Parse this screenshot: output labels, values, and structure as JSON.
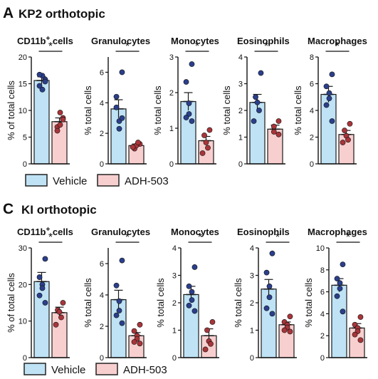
{
  "colors": {
    "vehicle_fill": "#bfe3f5",
    "vehicle_dot": "#2b3f8c",
    "adh_fill": "#f8cfcf",
    "adh_dot": "#a8353a"
  },
  "panels": [
    {
      "letter": "A",
      "title": "KP2 orthotopic",
      "legend": [
        "Vehicle",
        "ADH-503"
      ],
      "charts": [
        {
          "title_main": "CD11b",
          "title_sup": "+",
          "title_rest": " cells",
          "ylabel": "% of total cells",
          "ylim": [
            0,
            20
          ],
          "yticks": [
            0,
            5,
            10,
            15,
            20
          ],
          "significance": "*",
          "series": [
            {
              "name": "Vehicle",
              "mean": 15.6,
              "sem": 0.7,
              "points": [
                15.8,
                14.6,
                16.5,
                13.9,
                16.7,
                15.4
              ]
            },
            {
              "name": "ADH-503",
              "mean": 7.9,
              "sem": 0.7,
              "points": [
                8.6,
                6.9,
                9.6,
                7.3,
                6.2,
                8.3
              ]
            }
          ]
        },
        {
          "title_main": "Granulocytes",
          "title_sup": "",
          "title_rest": "",
          "ylabel": "% total cells",
          "ylim": [
            0,
            7
          ],
          "yticks": [
            0,
            2,
            4,
            6
          ],
          "significance": "*",
          "series": [
            {
              "name": "Vehicle",
              "mean": 3.6,
              "sem": 0.6,
              "points": [
                6.0,
                4.4,
                2.8,
                2.3,
                3.7,
                3.0
              ]
            },
            {
              "name": "ADH-503",
              "mean": 1.2,
              "sem": 0.1,
              "points": [
                1.3,
                1.0,
                1.2,
                1.4,
                1.1
              ]
            }
          ]
        },
        {
          "title_main": "Monocytes",
          "title_sup": "",
          "title_rest": "",
          "ylabel": "% total cells",
          "ylim": [
            0,
            3
          ],
          "yticks": [
            0,
            1,
            2,
            3
          ],
          "significance": "*",
          "series": [
            {
              "name": "Vehicle",
              "mean": 1.75,
              "sem": 0.25,
              "points": [
                2.8,
                2.3,
                1.7,
                1.4,
                1.3,
                1.2
              ]
            },
            {
              "name": "ADH-503",
              "mean": 0.65,
              "sem": 0.12,
              "points": [
                0.95,
                0.8,
                0.6,
                0.45,
                0.3
              ]
            }
          ]
        },
        {
          "title_main": "Eosinophils",
          "title_sup": "",
          "title_rest": "",
          "ylabel": "% total cells",
          "ylim": [
            0,
            4
          ],
          "yticks": [
            0,
            1,
            2,
            3,
            4
          ],
          "significance": "*",
          "series": [
            {
              "name": "Vehicle",
              "mean": 2.3,
              "sem": 0.3,
              "points": [
                3.4,
                2.5,
                2.3,
                2.0,
                1.6
              ]
            },
            {
              "name": "ADH-503",
              "mean": 1.3,
              "sem": 0.15,
              "points": [
                1.6,
                1.4,
                1.2,
                1.1
              ]
            }
          ]
        },
        {
          "title_main": "Macrophages",
          "title_sup": "",
          "title_rest": "",
          "ylabel": "% total cells",
          "ylim": [
            0,
            8
          ],
          "yticks": [
            0,
            2,
            4,
            6,
            8
          ],
          "significance": "*",
          "series": [
            {
              "name": "Vehicle",
              "mean": 5.2,
              "sem": 0.6,
              "points": [
                6.7,
                5.8,
                5.3,
                4.9,
                4.4,
                3.2
              ]
            },
            {
              "name": "ADH-503",
              "mean": 2.2,
              "sem": 0.3,
              "points": [
                3.0,
                2.5,
                2.1,
                1.8,
                1.6
              ]
            }
          ]
        }
      ]
    },
    {
      "letter": "C",
      "title": "KI orthotopic",
      "legend": [
        "Vehicle",
        "ADH-503"
      ],
      "charts": [
        {
          "title_main": "CD11b",
          "title_sup": "+",
          "title_rest": " cells",
          "ylabel": "% of total cells",
          "ylim": [
            0,
            30
          ],
          "yticks": [
            0,
            10,
            20,
            30
          ],
          "significance": "*",
          "series": [
            {
              "name": "Vehicle",
              "mean": 20.8,
              "sem": 2.5,
              "points": [
                27,
                22,
                20,
                19,
                17,
                15
              ]
            },
            {
              "name": "ADH-503",
              "mean": 12.3,
              "sem": 1.5,
              "points": [
                15,
                13,
                12.5,
                11,
                9
              ]
            }
          ]
        },
        {
          "title_main": "Granulocytes",
          "title_sup": "",
          "title_rest": "",
          "ylabel": "% total cells",
          "ylim": [
            0,
            7
          ],
          "yticks": [
            0,
            2,
            4,
            6
          ],
          "significance": "*",
          "series": [
            {
              "name": "Vehicle",
              "mean": 3.7,
              "sem": 0.6,
              "points": [
                6.2,
                4.6,
                3.6,
                3.0,
                2.7,
                2.2
              ]
            },
            {
              "name": "ADH-503",
              "mean": 1.4,
              "sem": 0.2,
              "points": [
                2.1,
                1.7,
                1.4,
                1.2,
                1.0,
                0.9
              ]
            }
          ]
        },
        {
          "title_main": "Monocytes",
          "title_sup": "",
          "title_rest": "",
          "ylabel": "% total cells",
          "ylim": [
            0,
            4
          ],
          "yticks": [
            0,
            1,
            2,
            3,
            4
          ],
          "significance": "*",
          "series": [
            {
              "name": "Vehicle",
              "mean": 2.3,
              "sem": 0.3,
              "points": [
                3.3,
                2.6,
                2.4,
                2.1,
                1.9,
                1.7
              ]
            },
            {
              "name": "ADH-503",
              "mean": 0.8,
              "sem": 0.25,
              "points": [
                1.3,
                1.0,
                0.6,
                0.5,
                0.3
              ]
            }
          ]
        },
        {
          "title_main": "Eosinophils",
          "title_sup": "",
          "title_rest": "",
          "ylabel": "% total cells",
          "ylim": [
            0,
            4
          ],
          "yticks": [
            0,
            1,
            2,
            3,
            4
          ],
          "significance": "*",
          "series": [
            {
              "name": "Vehicle",
              "mean": 2.5,
              "sem": 0.35,
              "points": [
                3.8,
                3.1,
                2.6,
                2.2,
                1.8,
                1.6
              ]
            },
            {
              "name": "ADH-503",
              "mean": 1.2,
              "sem": 0.1,
              "points": [
                1.5,
                1.3,
                1.2,
                1.1,
                1.0,
                0.95
              ]
            }
          ]
        },
        {
          "title_main": "Macrophages",
          "title_sup": "",
          "title_rest": "",
          "ylabel": "% total cells",
          "ylim": [
            0,
            10
          ],
          "yticks": [
            0,
            2,
            4,
            6,
            8,
            10
          ],
          "significance": "*",
          "series": [
            {
              "name": "Vehicle",
              "mean": 6.6,
              "sem": 0.6,
              "points": [
                8.5,
                7.2,
                6.8,
                6.3,
                5.6,
                4.2
              ]
            },
            {
              "name": "ADH-503",
              "mean": 2.7,
              "sem": 0.4,
              "points": [
                3.7,
                3.0,
                2.7,
                2.4,
                2.1,
                1.6
              ]
            }
          ]
        }
      ]
    }
  ]
}
